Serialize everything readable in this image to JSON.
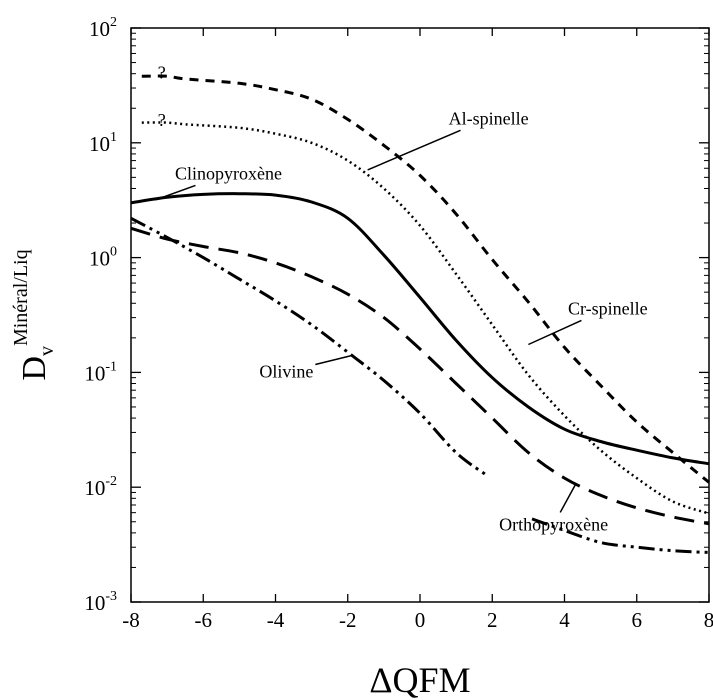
{
  "chart_data": {
    "type": "line",
    "xlabel": "ΔQFM",
    "ylabel": {
      "main": "D",
      "sub": "v",
      "sup": "Minéral/Liq"
    },
    "xlim": [
      -8,
      8
    ],
    "ylim": [
      0.001,
      100
    ],
    "y_scale": "log",
    "grid": false,
    "x_ticks": [
      -8,
      -6,
      -4,
      -2,
      0,
      2,
      4,
      6,
      8
    ],
    "x_tick_labels": [
      "-8",
      "-6",
      "-4",
      "-2",
      "0",
      "2",
      "4",
      "6",
      "8"
    ],
    "y_ticks": [
      {
        "value": 0.001,
        "base": "10",
        "exp": "-3"
      },
      {
        "value": 0.01,
        "base": "10",
        "exp": "-2"
      },
      {
        "value": 0.1,
        "base": "10",
        "exp": "-1"
      },
      {
        "value": 1,
        "base": "10",
        "exp": "0"
      },
      {
        "value": 10,
        "base": "10",
        "exp": "1"
      },
      {
        "value": 100,
        "base": "10",
        "exp": "2"
      }
    ],
    "series": [
      {
        "name": "Cr-spinelle",
        "style": "short-dash",
        "x": [
          -7.7,
          -7.0,
          -6.5,
          -5.0,
          -4.0,
          -3.0,
          -2.0,
          -1.0,
          0.0,
          1.0,
          2.0,
          3.0,
          4.0,
          5.0,
          6.0,
          7.0,
          8.0
        ],
        "y": [
          38,
          38,
          36,
          33,
          29,
          24,
          16,
          9.5,
          5.2,
          2.4,
          0.96,
          0.41,
          0.165,
          0.077,
          0.037,
          0.02,
          0.011
        ],
        "question_mark_segment": [
          [
            -7.7,
            38
          ],
          [
            -7.0,
            38
          ]
        ]
      },
      {
        "name": "Al-spinelle",
        "style": "dotted",
        "x": [
          -7.7,
          -7.0,
          -6.5,
          -5.0,
          -4.0,
          -3.0,
          -2.0,
          -1.0,
          0.0,
          1.0,
          2.0,
          3.0,
          4.0,
          5.0,
          6.0,
          7.0,
          8.0
        ],
        "y": [
          15,
          15,
          14.5,
          13.5,
          12,
          10,
          7.0,
          4.0,
          1.9,
          0.72,
          0.26,
          0.095,
          0.042,
          0.021,
          0.012,
          0.0075,
          0.0059
        ],
        "question_mark_segment": [
          [
            -7.7,
            15
          ],
          [
            -7.0,
            15
          ]
        ]
      },
      {
        "name": "Clinopyroxène",
        "style": "solid",
        "x": [
          -8,
          -7,
          -6,
          -5,
          -4,
          -3,
          -2,
          -1,
          0,
          1,
          2,
          3,
          4,
          5,
          6,
          7,
          8
        ],
        "y": [
          3.0,
          3.35,
          3.55,
          3.6,
          3.5,
          3.05,
          2.2,
          1.05,
          0.45,
          0.19,
          0.09,
          0.05,
          0.032,
          0.025,
          0.021,
          0.018,
          0.016
        ]
      },
      {
        "name": "Orthopyroxène",
        "style": "long-dash",
        "x": [
          -8,
          -7,
          -6,
          -5,
          -4,
          -3,
          -2,
          -1,
          0,
          1,
          2,
          3,
          4,
          5,
          6,
          7,
          8
        ],
        "y": [
          1.8,
          1.45,
          1.25,
          1.1,
          0.9,
          0.68,
          0.48,
          0.3,
          0.16,
          0.08,
          0.04,
          0.02,
          0.012,
          0.0085,
          0.0066,
          0.0055,
          0.0048
        ]
      },
      {
        "name": "Olivine",
        "style": "dash-dot-dot",
        "x": [
          -8,
          -7,
          -6,
          -5,
          -4,
          -3,
          -2,
          -1,
          0,
          1,
          1.8,
          3.1,
          4,
          5,
          6,
          7,
          8
        ],
        "y": [
          2.2,
          1.5,
          1.0,
          0.65,
          0.42,
          0.26,
          0.15,
          0.085,
          0.044,
          0.02,
          0.013,
          0.0053,
          0.0042,
          0.0033,
          0.003,
          0.0028,
          0.0027
        ],
        "gap_between_x": [
          1.8,
          3.1
        ]
      }
    ],
    "annotations": [
      {
        "text": "?",
        "x": -7.15,
        "y": 40
      },
      {
        "text": "?",
        "x": -7.15,
        "y": 15.5
      }
    ],
    "curve_labels": [
      {
        "series": "Clinopyroxène",
        "text": "Clinopyroxène",
        "label_x": -5.3,
        "label_y": 4.8,
        "leader_to": [
          -7.3,
          3.2
        ]
      },
      {
        "series": "Al-spinelle",
        "text": "Al-spinelle",
        "label_x": 1.9,
        "label_y": 14.5,
        "leader_to": [
          -1.45,
          5.8
        ]
      },
      {
        "series": "Cr-spinelle",
        "text": "Cr-spinelle",
        "label_x": 5.2,
        "label_y": 0.32,
        "leader_to": [
          3.0,
          0.175
        ]
      },
      {
        "series": "Olivine",
        "text": "Olivine",
        "label_x": -3.7,
        "label_y": 0.09,
        "leader_to": [
          -1.9,
          0.14
        ]
      },
      {
        "series": "Orthopyroxène",
        "text": "Orthopyroxène",
        "label_x": 3.7,
        "label_y": 0.0042,
        "leader_to": [
          4.3,
          0.0105
        ]
      }
    ]
  }
}
